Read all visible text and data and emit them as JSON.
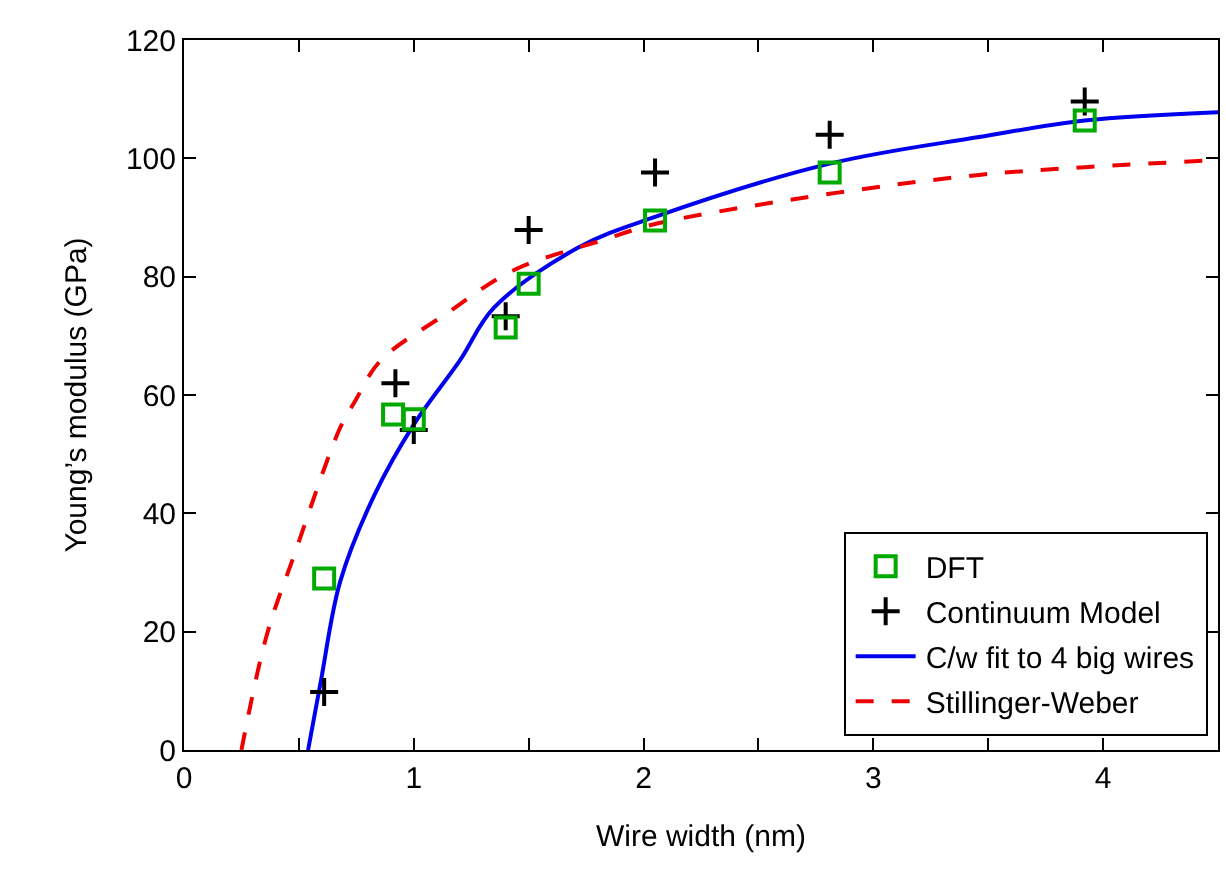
{
  "chart_data": {
    "type": "scatter",
    "xlabel": "Wire width (nm)",
    "ylabel": "Young’s modulus (GPa)",
    "xlim": [
      0,
      4.5
    ],
    "ylim": [
      0,
      120
    ],
    "xticks": [
      0,
      {
        "value": 0.5,
        "label": null
      },
      1,
      {
        "value": 1.5,
        "label": null
      },
      2,
      {
        "value": 2.5,
        "label": null
      },
      3,
      {
        "value": 3.5,
        "label": null
      },
      4
    ],
    "yticks": [
      0,
      20,
      40,
      60,
      80,
      100,
      120
    ],
    "legend": "bottom right",
    "series": [
      {
        "name": "DFT",
        "marker": "square",
        "color": "#00aa00",
        "x": [
          0.61,
          0.91,
          1.0,
          1.4,
          1.5,
          2.05,
          2.81,
          3.92
        ],
        "values": [
          29.0,
          56.7,
          55.9,
          71.4,
          78.8,
          89.5,
          97.6,
          106.4
        ]
      },
      {
        "name": "Continuum Model",
        "marker": "cross",
        "color": "#000000",
        "x": [
          0.61,
          0.92,
          1.0,
          1.4,
          1.5,
          2.05,
          2.81,
          3.92
        ],
        "values": [
          9.8,
          62.0,
          54.1,
          73.3,
          87.9,
          97.6,
          104.0,
          109.6
        ]
      },
      {
        "name": "C/w fit to 4 big wires",
        "type": "line",
        "marker": "none",
        "line_style": "solid",
        "color": "#0000ee",
        "x": [
          0.54,
          0.595,
          0.68,
          0.83,
          1.0,
          1.2,
          1.35,
          1.72,
          2.05,
          2.81,
          3.46,
          3.92,
          4.5
        ],
        "values": [
          0,
          11.5,
          28.5,
          43.2,
          55.0,
          65.8,
          74.8,
          85.0,
          90.1,
          99.1,
          103.6,
          106.4,
          107.8
        ]
      },
      {
        "name": "Stillinger-Weber",
        "type": "line",
        "marker": "none",
        "line_style": "dashed",
        "color": "#ee0000",
        "x": [
          0.25,
          0.36,
          0.48,
          0.68,
          0.745,
          0.855,
          1.14,
          1.43,
          1.84,
          2.05,
          2.81,
          3.46,
          3.92,
          4.5
        ],
        "values": [
          0,
          19.4,
          33.0,
          54.5,
          59.0,
          65.8,
          73.7,
          81.0,
          86.4,
          88.9,
          94.0,
          97.2,
          98.5,
          99.7
        ]
      }
    ]
  }
}
